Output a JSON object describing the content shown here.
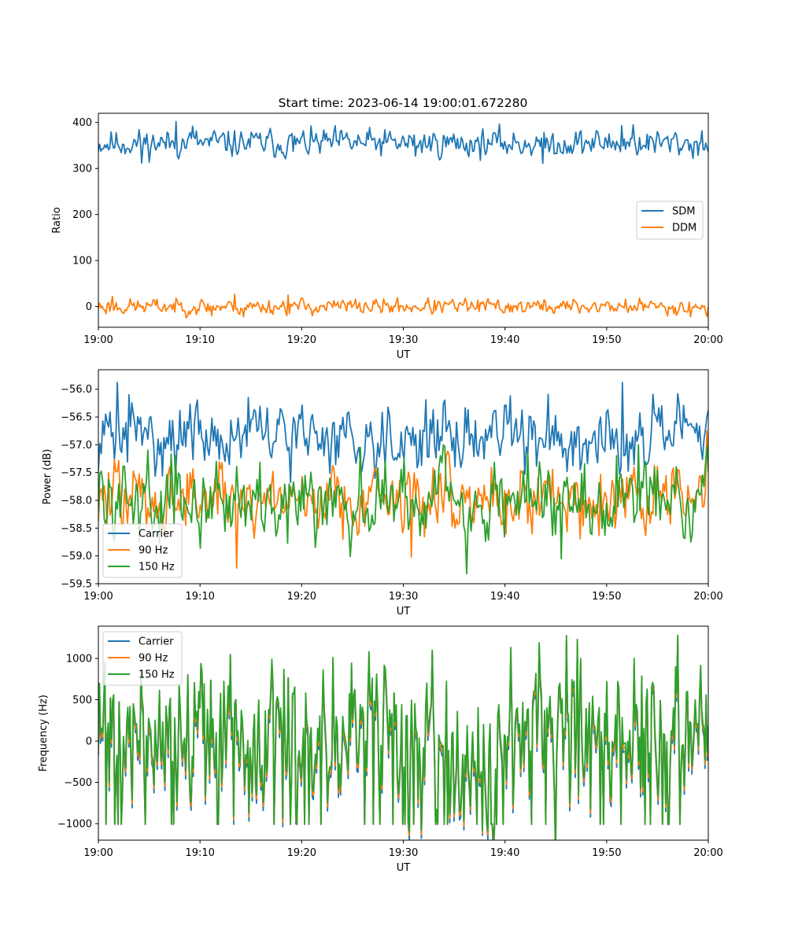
{
  "title": "Start time: 2023-06-14 19:00:01.672280",
  "chart_data": [
    {
      "type": "line",
      "xlabel": "UT",
      "ylabel": "Ratio",
      "xlim": [
        "19:00",
        "20:00"
      ],
      "ylim": [
        -45,
        420
      ],
      "xticks": [
        "19:00",
        "19:10",
        "19:20",
        "19:30",
        "19:40",
        "19:50",
        "20:00"
      ],
      "yticks": [
        0,
        100,
        200,
        300,
        400
      ],
      "ytick_labels": [
        "0",
        "100",
        "200",
        "300",
        "400"
      ],
      "legend_position": "center-right",
      "series": [
        {
          "name": "SDM",
          "color": "#1f77b4",
          "points": 480,
          "center": 355,
          "spread": 14,
          "seed": 11,
          "outliers": [
            [
              0.07,
              312
            ],
            [
              0.127,
              402
            ],
            [
              0.155,
              392
            ],
            [
              0.32,
              337
            ],
            [
              0.52,
              327
            ],
            [
              0.728,
              311
            ],
            [
              0.876,
              395
            ],
            [
              0.858,
              393
            ],
            [
              0.975,
              322
            ]
          ]
        },
        {
          "name": "DDM",
          "color": "#ff7f0e",
          "points": 480,
          "center": 0,
          "spread": 8,
          "seed": 23,
          "outliers": [
            [
              0.022,
              22
            ],
            [
              0.185,
              -20
            ],
            [
              0.224,
              27
            ],
            [
              0.238,
              -22
            ],
            [
              0.312,
              25
            ],
            [
              0.97,
              -22
            ],
            [
              0.998,
              -22
            ]
          ]
        }
      ]
    },
    {
      "type": "line",
      "xlabel": "UT",
      "ylabel": "Power (dB)",
      "xlim": [
        "19:00",
        "20:00"
      ],
      "ylim": [
        -59.5,
        -55.65
      ],
      "xticks": [
        "19:00",
        "19:10",
        "19:20",
        "19:30",
        "19:40",
        "19:50",
        "20:00"
      ],
      "yticks": [
        -59.5,
        -59.0,
        -58.5,
        -58.0,
        -57.5,
        -57.0,
        -56.5,
        -56.0
      ],
      "ytick_labels": [
        "−59.5",
        "−59.0",
        "−58.5",
        "−58.0",
        "−57.5",
        "−57.0",
        "−56.5",
        "−56.0"
      ],
      "legend_position": "lower-left",
      "series": [
        {
          "name": "Carrier",
          "color": "#1f77b4",
          "points": 420,
          "center": -56.85,
          "spread": 0.28,
          "seed": 31,
          "outliers": [
            [
              0.031,
              -55.88
            ],
            [
              0.05,
              -56.1
            ],
            [
              0.245,
              -56.15
            ],
            [
              0.86,
              -55.88
            ],
            [
              0.675,
              -56.12
            ],
            [
              0.998,
              -56.5
            ]
          ]
        },
        {
          "name": "90 Hz",
          "color": "#ff7f0e",
          "points": 420,
          "center": -57.95,
          "spread": 0.3,
          "seed": 47,
          "outliers": [
            [
              0.226,
              -59.22
            ],
            [
              0.513,
              -59.02
            ],
            [
              0.998,
              -56.75
            ],
            [
              0.4,
              -58.7
            ]
          ]
        },
        {
          "name": "150 Hz",
          "color": "#2ca02c",
          "points": 420,
          "center": -57.95,
          "spread": 0.33,
          "seed": 59,
          "outliers": [
            [
              0.605,
              -59.32
            ],
            [
              0.76,
              -59.05
            ],
            [
              0.43,
              -57.05
            ],
            [
              0.565,
              -57.0
            ],
            [
              0.885,
              -57.0
            ]
          ]
        }
      ]
    },
    {
      "type": "line",
      "xlabel": "UT",
      "ylabel": "Frequency (Hz)",
      "xlim": [
        "19:00",
        "20:00"
      ],
      "ylim": [
        -1200,
        1390
      ],
      "xticks": [
        "19:00",
        "19:10",
        "19:20",
        "19:30",
        "19:40",
        "19:50",
        "20:00"
      ],
      "yticks": [
        -1000,
        -500,
        0,
        500,
        1000
      ],
      "ytick_labels": [
        "−1000",
        "−500",
        "0",
        "500",
        "1000"
      ],
      "legend_position": "upper-left",
      "series": [
        {
          "name": "Carrier",
          "color": "#1f77b4",
          "points": 560,
          "center": -100,
          "spread": 420,
          "seed": 71,
          "offset": -100,
          "outliers": [
            [
              0.01,
              950
            ],
            [
              0.785,
              1230
            ],
            [
              0.95,
              1280
            ],
            [
              0.548,
              1100
            ],
            [
              0.385,
              1010
            ],
            [
              0.63,
              -1090
            ]
          ]
        },
        {
          "name": "90 Hz",
          "color": "#ff7f0e",
          "points": 560,
          "center": -50,
          "spread": 420,
          "seed": 71,
          "offset": -50,
          "outliers": [
            [
              0.01,
              950
            ],
            [
              0.785,
              1230
            ],
            [
              0.95,
              1280
            ],
            [
              0.548,
              1100
            ],
            [
              0.385,
              1010
            ],
            [
              0.63,
              -1090
            ]
          ]
        },
        {
          "name": "150 Hz",
          "color": "#2ca02c",
          "points": 560,
          "center": 0,
          "spread": 420,
          "seed": 71,
          "offset": 0,
          "outliers": [
            [
              0.01,
              950
            ],
            [
              0.785,
              1230
            ],
            [
              0.95,
              1280
            ],
            [
              0.548,
              1100
            ],
            [
              0.385,
              1010
            ],
            [
              0.63,
              -1090
            ]
          ]
        }
      ]
    }
  ]
}
